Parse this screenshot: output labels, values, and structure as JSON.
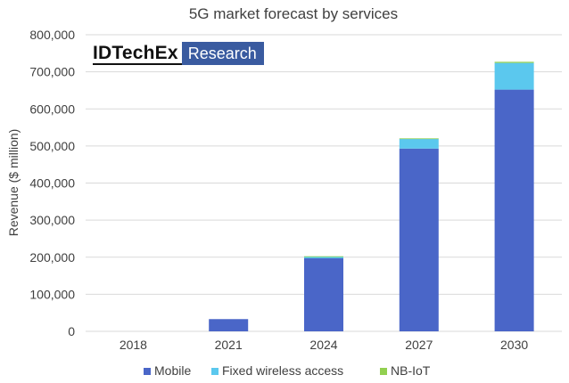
{
  "chart_data": {
    "type": "bar",
    "stacked": true,
    "title": "5G market forecast by services",
    "xlabel": "",
    "ylabel": "Revenue ($ million)",
    "categories": [
      "2018",
      "2021",
      "2024",
      "2027",
      "2030"
    ],
    "series": [
      {
        "name": "Mobile",
        "color": "#4a66c8",
        "values": [
          0,
          33000,
          197000,
          493000,
          652000
        ]
      },
      {
        "name": "Fixed wireless access",
        "color": "#5bc8ee",
        "values": [
          0,
          0,
          5000,
          26000,
          72000
        ]
      },
      {
        "name": "NB-IoT",
        "color": "#92d050",
        "values": [
          0,
          0,
          500,
          1500,
          3000
        ]
      }
    ],
    "ylim": [
      0,
      800000
    ],
    "yticks": [
      0,
      100000,
      200000,
      300000,
      400000,
      500000,
      600000,
      700000,
      800000
    ],
    "ytick_labels": [
      "0",
      "100,000",
      "200,000",
      "300,000",
      "400,000",
      "500,000",
      "600,000",
      "700,000",
      "800,000"
    ],
    "grid": true,
    "legend_position": "bottom"
  },
  "branding": {
    "logo_main": "IDTechEx",
    "logo_sub": "Research",
    "logo_color": "#3a5ba0"
  }
}
